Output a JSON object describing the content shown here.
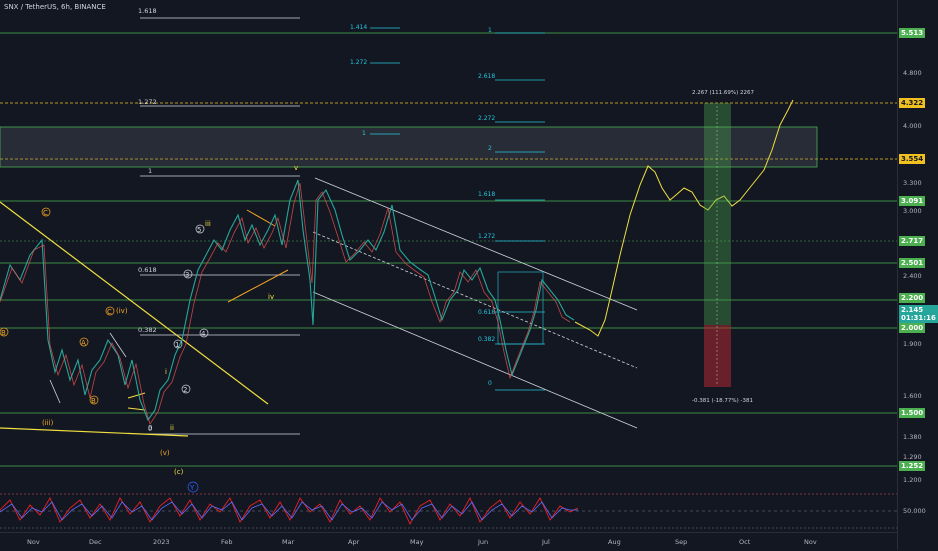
{
  "header": {
    "symbol_line": "SNX / TetherUS, 6h, BINANCE"
  },
  "price_axis": {
    "ticks": [
      "5.513",
      "4.800",
      "4.322",
      "4.000",
      "3.554",
      "3.300",
      "3.091",
      "3.000",
      "2.717",
      "2.501",
      "2.400",
      "2.200",
      "2.145",
      "01:31:16",
      "2.000",
      "1.900",
      "1.600",
      "1.500",
      "1.380",
      "1.290",
      "1.252",
      "1.200",
      "50.000"
    ],
    "tags": [
      {
        "label": "5.513",
        "color": "#4caf50"
      },
      {
        "label": "4.322",
        "color": "#f0c020"
      },
      {
        "label": "3.554",
        "color": "#f0c020"
      },
      {
        "label": "3.091",
        "color": "#4caf50"
      },
      {
        "label": "2.717",
        "color": "#4caf50"
      },
      {
        "label": "2.501",
        "color": "#4caf50"
      },
      {
        "label": "2.200",
        "color": "#4caf50"
      },
      {
        "label": "2.000",
        "color": "#4caf50"
      },
      {
        "label": "1.500",
        "color": "#4caf50"
      },
      {
        "label": "1.252",
        "color": "#4caf50"
      }
    ],
    "current": {
      "price": "2.145",
      "countdown": "01:31:16",
      "color": "#26a69a"
    }
  },
  "time_axis": {
    "labels": [
      "Nov",
      "Dec",
      "2023",
      "Feb",
      "Mar",
      "Apr",
      "May",
      "Jun",
      "Jul",
      "Aug",
      "Sep",
      "Oct",
      "Nov"
    ]
  },
  "fib_left": [
    "1.618",
    "1.272",
    "1",
    "0.618",
    "0.382",
    "0"
  ],
  "fib_mid": [
    "1.414",
    "1.272",
    "1"
  ],
  "fib_right": [
    "1",
    "2.618",
    "2.272",
    "2",
    "1.618",
    "1.272",
    "0.618",
    "0.382",
    "0"
  ],
  "waves": {
    "orange": [
      "C",
      "B",
      "A",
      "B",
      "C",
      "(iv)",
      "(iii)",
      "(v)",
      "(c)",
      "iv"
    ],
    "white": [
      "iii",
      "5",
      "3",
      "1",
      "4",
      "2",
      "i",
      "ii",
      "0",
      "v"
    ],
    "blue": [
      "Y"
    ]
  },
  "position": {
    "target_label": "2.267 (111.69%) 2267",
    "stop_label": "-0.381 (-18.77%) -381"
  },
  "colors": {
    "bg": "#131722",
    "green": "#4caf50",
    "yellow": "#f0c020",
    "orange": "#f5a623",
    "cyan": "#26c6da",
    "red": "#b22833"
  }
}
